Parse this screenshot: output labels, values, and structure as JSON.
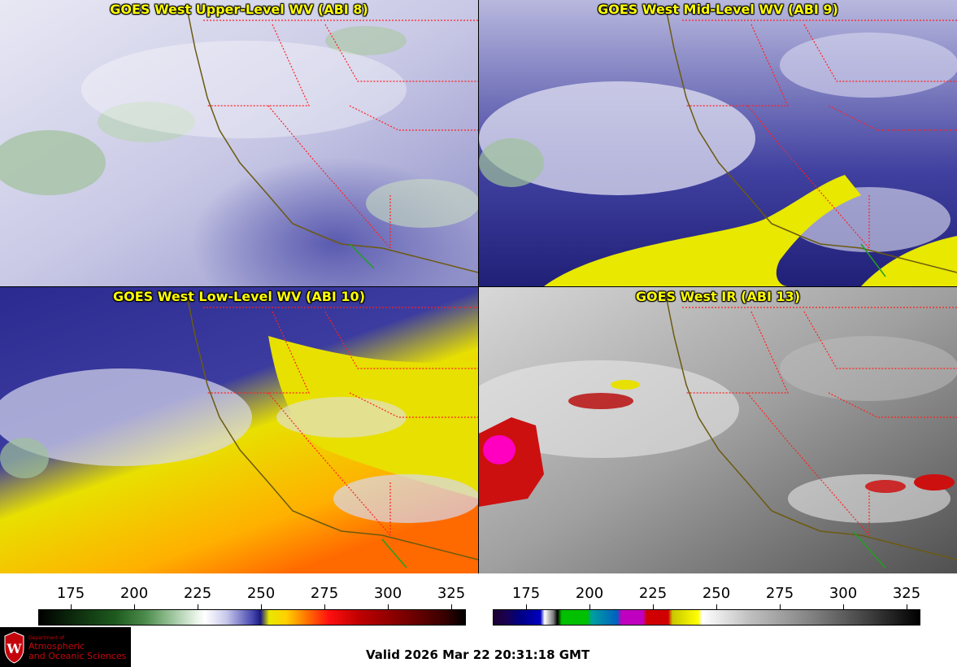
{
  "panels": [
    {
      "title": "GOES West Upper-Level WV (ABI 8)"
    },
    {
      "title": "GOES West Mid-Level WV (ABI 9)"
    },
    {
      "title": "GOES West Low-Level WV (ABI 10)"
    },
    {
      "title": "GOES West IR (ABI 13)"
    }
  ],
  "colorbars": {
    "wv": {
      "ticks": [
        "175",
        "200",
        "225",
        "250",
        "275",
        "300",
        "325"
      ]
    },
    "ir": {
      "ticks": [
        "175",
        "200",
        "225",
        "250",
        "275",
        "300",
        "325"
      ]
    }
  },
  "logo": {
    "line1": "Department of",
    "line2": "Atmospheric",
    "line3": "and Oceanic Sciences"
  },
  "footer": {
    "valid": "Valid 2026 Mar 22 20:31:18 GMT"
  },
  "colors": {
    "title": "#ffff00",
    "border_state": "#ff2020",
    "coast": "#7a5a10",
    "brand": "#c5050c"
  }
}
